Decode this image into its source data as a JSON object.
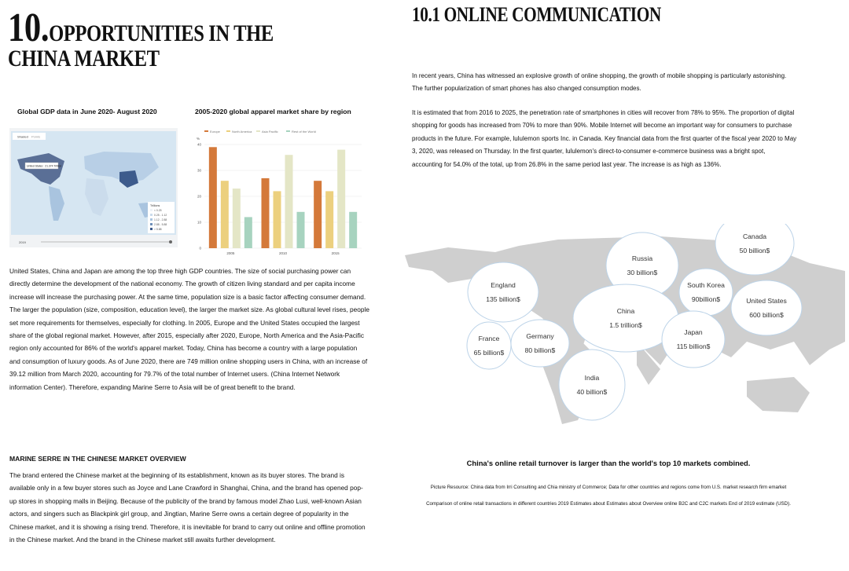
{
  "left": {
    "number": "10.",
    "title_line1": "OPPORTUNITIES IN THE",
    "title_line2": "CHINA MARKET",
    "figure1_caption": "Global GDP data in June 2020- August 2020",
    "map_widget": {
      "tabs": [
        "Shaded",
        "Points"
      ],
      "tooltip": "United States : 21.374 Trillion",
      "legend_title": "Trillions",
      "legend": [
        "< 0.25",
        "0.25 - 1.12",
        "1.12 - 2.88",
        "2.88 - 5.88",
        "> 5.88"
      ],
      "year": "2019"
    },
    "paragraph": "United States, China and Japan are among the top three high GDP countries. The size of social purchasing power can directly determine the development of the national economy. The growth of citizen living standard and per capita income increase will increase the purchasing power. At the same time, population size is a basic factor affecting consumer demand. The larger the population (size, composition, education level), the larger the market size. As global cultural level rises, people set more requirements for themselves, especially for clothing. In 2005, Europe and the United States occupied the largest share of the global regional market. However, after 2015, especially after 2020, Europe, North America and the Asia-Pacific region only accounted for 86% of the world's apparel market. Today, China has become a country with a large population and consumption of luxury goods. As of June 2020, there are 749 million online shopping users in China, with an increase of 39.12 million from March 2020, accounting for 79.7% of the total number of Internet users. (China Internet Network information Center). Therefore, expanding Marine Serre to Asia will be of great benefit to the brand.",
    "overview_title": "MARINE SERRE IN THE CHINESE MARKET OVERVIEW",
    "overview_paragraph": "The brand entered the Chinese market at the beginning of its establishment, known as its buyer stores. The brand is available only in a few buyer stores such as Joyce and Lane Crawford in Shanghai, China, and the brand has opened pop-up stores in shopping malls in Beijing. Because of the publicity of the brand by famous model Zhao Lusi, well-known Asian actors, and singers such as Blackpink girl group, and Jingtian, Marine Serre owns a certain degree of popularity in the Chinese market, and it is showing a rising trend. Therefore, it is inevitable for brand to carry out online and offline promotion in the Chinese market. And the brand in the Chinese market still awaits further development."
  },
  "chart_data": {
    "type": "bar",
    "title": "2005-2020 global apparel market share by region",
    "y_label": "%",
    "categories": [
      "2005",
      "2010",
      "2015"
    ],
    "series": [
      {
        "name": "Europe",
        "color": "#d4793a",
        "values": [
          39,
          27,
          26
        ]
      },
      {
        "name": "North America",
        "color": "#ecd07e",
        "values": [
          26,
          22,
          22
        ]
      },
      {
        "name": "Asia Pacific",
        "color": "#e4e6c6",
        "values": [
          23,
          36,
          38
        ]
      },
      {
        "name": "Rest of the World",
        "color": "#a7d3bf",
        "values": [
          12,
          14,
          14
        ]
      }
    ],
    "ylim": [
      0,
      40
    ],
    "yticks": [
      0,
      10,
      20,
      30,
      40
    ],
    "grid": true
  },
  "right": {
    "title": "10.1 ONLINE COMMUNICATION",
    "paragraph1": "In recent years, China has witnessed an explosive growth of online shopping, the growth of mobile shopping is particularly astonishing. The further popularization of smart phones has also changed consumption modes.",
    "paragraph2": "It is estimated that from 2016 to 2025, the penetration rate of smartphones in cities will recover from 78% to 95%. The proportion of digital shopping for goods has increased from 70% to more than 90%. Mobile Internet will become an important way for consumers to purchase products in the future. For example, lululemon sports Inc. in Canada. Key financial data from the first quarter of the fiscal year 2020 to May 3, 2020, was released on Thursday. In the first quarter, lululemon's direct-to-consumer e-commerce business was a bright spot, accounting for 54.0% of the total, up from 26.8% in the same period last year. The increase is as high as 136%.",
    "bubbles": [
      {
        "name": "Canada",
        "value": "50 billion$"
      },
      {
        "name": "Russia",
        "value": "30 billion$"
      },
      {
        "name": "England",
        "value": "135 billion$"
      },
      {
        "name": "South Korea",
        "value": "90billion$"
      },
      {
        "name": "United States",
        "value": "600 billion$"
      },
      {
        "name": "China",
        "value": "1.5 trillion$"
      },
      {
        "name": "France",
        "value": "65 billion$"
      },
      {
        "name": "Germany",
        "value": "80 billion$"
      },
      {
        "name": "Japan",
        "value": "115 billion$"
      },
      {
        "name": "India",
        "value": "40 billion$"
      }
    ],
    "caption": "China's online retail turnover is larger than the world's top 10 markets combined.",
    "source1": "Picture Resource: China data from Irri Consulting and Chia ministry of Commerce; Data for other countries and regions come from U.S. market research firm emarket",
    "source2": "Comparison of online retail transactions in different countries 2019 Estimates about Estimates about Overview online B2C and C2C markets  End of 2019 estimate (USD)."
  }
}
